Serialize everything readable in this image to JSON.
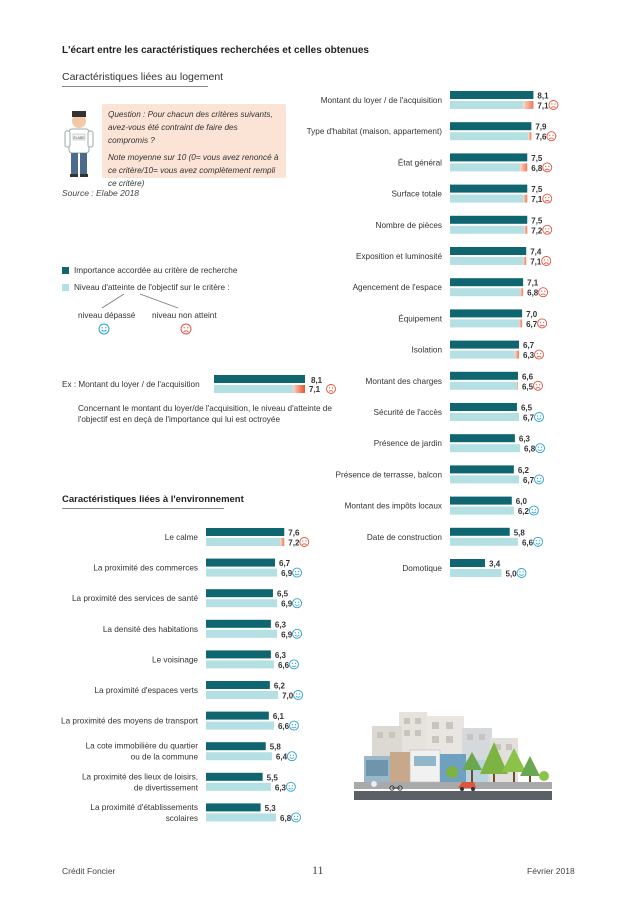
{
  "page": {
    "main_title": "L'écart entre les caractéristiques recherchées et celles obtenues",
    "section_logement": "Caractéristiques liées au logement",
    "section_environnement": "Caractéristiques liées à l'environnement",
    "question_line1": "Question : Pour chacun des critères suivants, avez-vous été contraint de faire des compromis ?",
    "question_line2": "Note moyenne sur 10 (0= vous avez renoncé à ce critère/10= vous avez complètement rempli ce critère)",
    "source": "Source : Elabe 2018",
    "legend_importance": "Importance accordée au critère de recherche",
    "legend_atteinte": "Niveau d'atteinte de l'objectif sur le critère :",
    "niveau_depasse": "niveau dépassé",
    "niveau_non_atteint": "niveau non atteint",
    "example_label": "Ex : Montant du loyer / de l'acquisition",
    "example_values": [
      "8,1",
      "7,1"
    ],
    "example_note": "Concernant le montant du loyer/de l'acquisition, le niveau d'atteinte de l'objectif est en deçà de l'importance qui lui est octroyée",
    "badge_text": "ELABE",
    "footer_left": "Crédit Foncier",
    "footer_page": "11",
    "footer_right": "Février 2018",
    "colors": {
      "importance": "#0f6670",
      "atteinte": "#b5e0e3",
      "gap": "#ef7a5a",
      "sad": "#e0533c",
      "happy": "#2a9fd0"
    }
  },
  "chart_data": [
    {
      "type": "bar",
      "title": "Caractéristiques liées au logement",
      "categories": [
        "Montant du loyer / de l'acquisition",
        "Type d'habitat (maison, appartement)",
        "État général",
        "Surface totale",
        "Nombre de pièces",
        "Exposition et luminosité",
        "Agencement de l'espace",
        "Équipement",
        "Isolation",
        "Montant des charges",
        "Sécurité de l'accès",
        "Présence de jardin",
        "Présence de terrasse, balcon",
        "Montant des impôts locaux",
        "Date de construction",
        "Domotique"
      ],
      "series": [
        {
          "name": "Importance accordée au critère de recherche",
          "values": [
            8.1,
            7.9,
            7.5,
            7.5,
            7.5,
            7.4,
            7.1,
            7.0,
            6.7,
            6.6,
            6.5,
            6.3,
            6.2,
            6.0,
            5.8,
            3.4
          ]
        },
        {
          "name": "Niveau d'atteinte de l'objectif sur le critère",
          "values": [
            7.1,
            7.6,
            6.8,
            7.1,
            7.2,
            7.1,
            6.8,
            6.7,
            6.3,
            6.5,
            6.7,
            6.8,
            6.7,
            6.2,
            6.6,
            5.0
          ]
        }
      ],
      "labels_importance": [
        "8,1",
        "7,9",
        "7,5",
        "7,5",
        "7,5",
        "7,4",
        "7,1",
        "7,0",
        "6,7",
        "6,6",
        "6,5",
        "6,3",
        "6,2",
        "6,0",
        "5,8",
        "3,4"
      ],
      "labels_atteinte": [
        "7,1",
        "7,6",
        "6,8",
        "7,1",
        "7,2",
        "7,1",
        "6,8",
        "6,7",
        "6,3",
        "6,5",
        "6,7",
        "6,8",
        "6,7",
        "6,2",
        "6,6",
        "5,0"
      ],
      "xlim": [
        0,
        10
      ]
    },
    {
      "type": "bar",
      "title": "Caractéristiques liées à l'environnement",
      "categories": [
        "Le calme",
        "La proximité des commerces",
        "La proximité des services de santé",
        "La densité des habitations",
        "Le voisinage",
        "La proximité d'espaces verts",
        "La proximité des moyens de transport",
        "La cote immobilière du quartier ou de la commune",
        "La proximité des lieux de loisirs, de divertissement",
        "La proximité d'établissements scolaires"
      ],
      "category_lines": [
        [
          "Le calme"
        ],
        [
          "La proximité des commerces"
        ],
        [
          "La proximité des services de santé"
        ],
        [
          "La densité des habitations"
        ],
        [
          "Le voisinage"
        ],
        [
          "La proximité d'espaces verts"
        ],
        [
          "La proximité des moyens de transport"
        ],
        [
          "La cote immobilière du quartier",
          "ou de la commune"
        ],
        [
          "La proximité des lieux de loisirs,",
          "de divertissement"
        ],
        [
          "La proximité d'établissements",
          "scolaires"
        ]
      ],
      "series": [
        {
          "name": "Importance accordée au critère de recherche",
          "values": [
            7.6,
            6.7,
            6.5,
            6.3,
            6.3,
            6.2,
            6.1,
            5.8,
            5.5,
            5.3
          ]
        },
        {
          "name": "Niveau d'atteinte de l'objectif sur le critère",
          "values": [
            7.2,
            6.9,
            6.9,
            6.9,
            6.6,
            7.0,
            6.6,
            6.4,
            6.3,
            6.8
          ]
        }
      ],
      "labels_importance": [
        "7,6",
        "6,7",
        "6,5",
        "6,3",
        "6,3",
        "6,2",
        "6,1",
        "5,8",
        "5,5",
        "5,3"
      ],
      "labels_atteinte": [
        "7,2",
        "6,9",
        "6,9",
        "6,9",
        "6,6",
        "7,0",
        "6,6",
        "6,4",
        "6,3",
        "6,8"
      ],
      "xlim": [
        0,
        10
      ]
    }
  ]
}
